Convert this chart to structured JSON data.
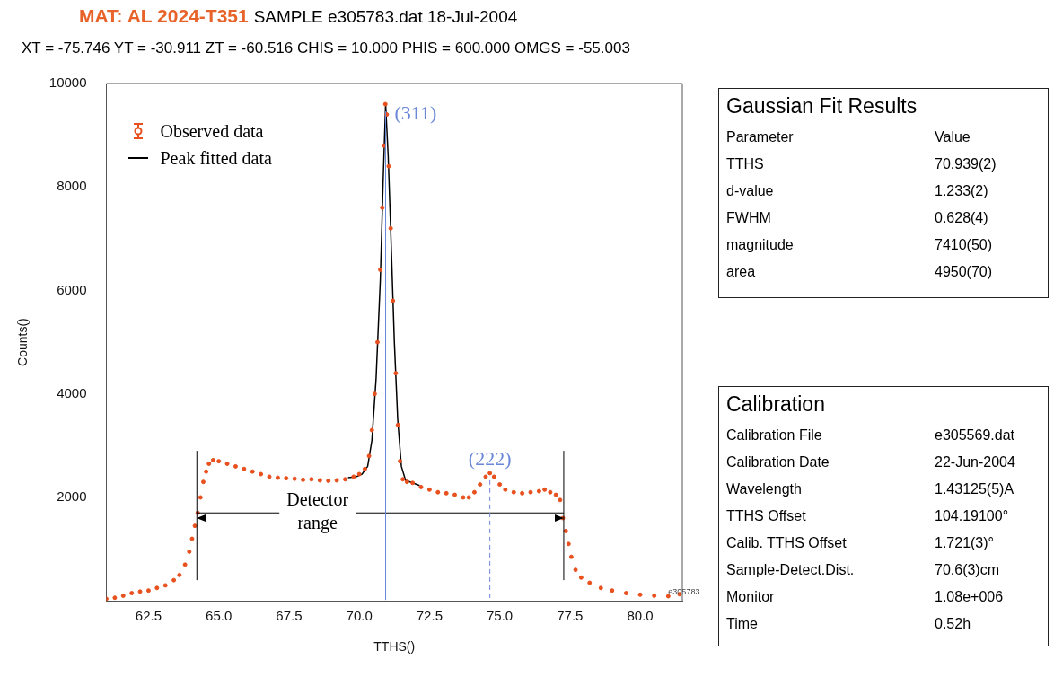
{
  "chart_data": [
    {
      "type": "scatter",
      "title": "MAT: AL 2024-T351",
      "subtitle": "SAMPLE e305783.dat 18-Jul-2004",
      "xlabel": "TTHS()",
      "ylabel": "Counts()",
      "xlim": [
        61.0,
        81.5
      ],
      "xticks": [
        {
          "value": 62.5,
          "label": "62.5"
        },
        {
          "value": 65,
          "label": "65.0"
        },
        {
          "value": 67.5,
          "label": "67.5"
        },
        {
          "value": 70,
          "label": "70.0"
        },
        {
          "value": 72.5,
          "label": "72.5"
        },
        {
          "value": 75,
          "label": "75.0"
        },
        {
          "value": 77.5,
          "label": "77.5"
        },
        {
          "value": 80,
          "label": "80.0"
        }
      ],
      "ylim": [
        0,
        10000
      ],
      "yticks": [
        2000,
        4000,
        6000,
        8000,
        10000
      ],
      "legend": "top left",
      "series": [
        {
          "name": "Observed data",
          "marker": "circle",
          "color": "#e8501e",
          "x": [
            61.0,
            61.3,
            61.6,
            61.9,
            62.2,
            62.5,
            62.8,
            63.1,
            63.4,
            63.6,
            63.8,
            63.95,
            64.05,
            64.15,
            64.25,
            64.35,
            64.45,
            64.55,
            64.65,
            64.8,
            65.0,
            65.3,
            65.6,
            65.9,
            66.2,
            66.5,
            66.8,
            67.1,
            67.4,
            67.7,
            68.0,
            68.3,
            68.6,
            68.9,
            69.2,
            69.5,
            69.8,
            70.0,
            70.2,
            70.35,
            70.45,
            70.55,
            70.65,
            70.75,
            70.82,
            70.88,
            70.93,
            70.98,
            71.05,
            71.12,
            71.2,
            71.3,
            71.38,
            71.45,
            71.55,
            71.7,
            71.9,
            72.2,
            72.5,
            72.8,
            73.1,
            73.4,
            73.7,
            73.9,
            74.1,
            74.3,
            74.5,
            74.65,
            74.8,
            75.0,
            75.2,
            75.5,
            75.8,
            76.1,
            76.4,
            76.6,
            76.8,
            77.0,
            77.15,
            77.25,
            77.35,
            77.45,
            77.55,
            77.7,
            77.9,
            78.2,
            78.6,
            79.0,
            79.5,
            80.0,
            80.5,
            81.0,
            81.4
          ],
          "values": [
            40,
            60,
            100,
            150,
            180,
            200,
            250,
            300,
            400,
            500,
            700,
            950,
            1200,
            1450,
            1700,
            2000,
            2300,
            2500,
            2650,
            2720,
            2700,
            2650,
            2600,
            2550,
            2500,
            2450,
            2400,
            2380,
            2370,
            2360,
            2340,
            2350,
            2330,
            2320,
            2330,
            2350,
            2400,
            2450,
            2550,
            2800,
            3300,
            4000,
            5000,
            6400,
            7600,
            8800,
            9600,
            9400,
            8400,
            7200,
            5800,
            4400,
            3400,
            2700,
            2350,
            2300,
            2280,
            2200,
            2150,
            2100,
            2080,
            2050,
            2000,
            2000,
            2100,
            2250,
            2400,
            2470,
            2400,
            2250,
            2150,
            2100,
            2080,
            2100,
            2120,
            2150,
            2100,
            2050,
            1950,
            1600,
            1350,
            1100,
            850,
            600,
            450,
            350,
            250,
            200,
            150,
            120,
            100,
            90,
            130
          ]
        },
        {
          "name": "Peak fitted data",
          "type": "line",
          "color": "#000000",
          "x": [
            69.6,
            69.9,
            70.1,
            70.3,
            70.45,
            70.6,
            70.75,
            70.85,
            70.939,
            71.03,
            71.13,
            71.25,
            71.37,
            71.5,
            71.65,
            71.9,
            72.15
          ],
          "values": [
            2380,
            2400,
            2450,
            2600,
            3100,
            4300,
            6200,
            8100,
            9600,
            8600,
            7000,
            5000,
            3500,
            2600,
            2330,
            2280,
            2230
          ]
        }
      ],
      "ref_lines": [
        {
          "axis": "x",
          "value": 70.939,
          "color": "#6a87d8",
          "line_style": "solid"
        },
        {
          "axis": "x",
          "value": 74.65,
          "color": "#6a87d8",
          "line_style": "dashed"
        },
        {
          "axis": "x",
          "value": 64.22,
          "color": "#000000",
          "line_style": "solid"
        },
        {
          "axis": "x",
          "value": 77.28,
          "color": "#000000",
          "line_style": "solid"
        }
      ],
      "annotations": [
        "XT = -75.746  YT = -30.911  ZT = -60.516  CHIS = 10.000  PHIS = 600.000  OMGS = -55.003",
        "Detector range",
        {
          "text": "(311)",
          "x": 70.939,
          "y": 9600
        },
        {
          "text": "(222)",
          "x": 74.65,
          "y": 2470
        },
        {
          "text": "e305783",
          "x": 81.0,
          "y": 90
        }
      ]
    },
    {
      "type": "other",
      "title": "Gaussian Fit Results",
      "annotations": [
        "Parameter",
        "Value",
        "TTHS",
        "70.939(2)",
        "d-value",
        "1.233(2)",
        "FWHM",
        "0.628(4)",
        "magnitude",
        "7410(50)",
        "area",
        "4950(70)"
      ]
    },
    {
      "type": "other",
      "title": "Calibration",
      "annotations": [
        "Calibration File",
        "e305569.dat",
        "Calibration Date",
        "22-Jun-2004",
        "Wavelength",
        "1.43125(5)A",
        "TTHS Offset",
        "104.19100°",
        "Calib. TTHS Offset",
        "1.721(3)°",
        "Sample-Detect.Dist.",
        "70.6(3)cm",
        "Monitor",
        "1.08e+006",
        "Time",
        "0.52h"
      ]
    }
  ]
}
